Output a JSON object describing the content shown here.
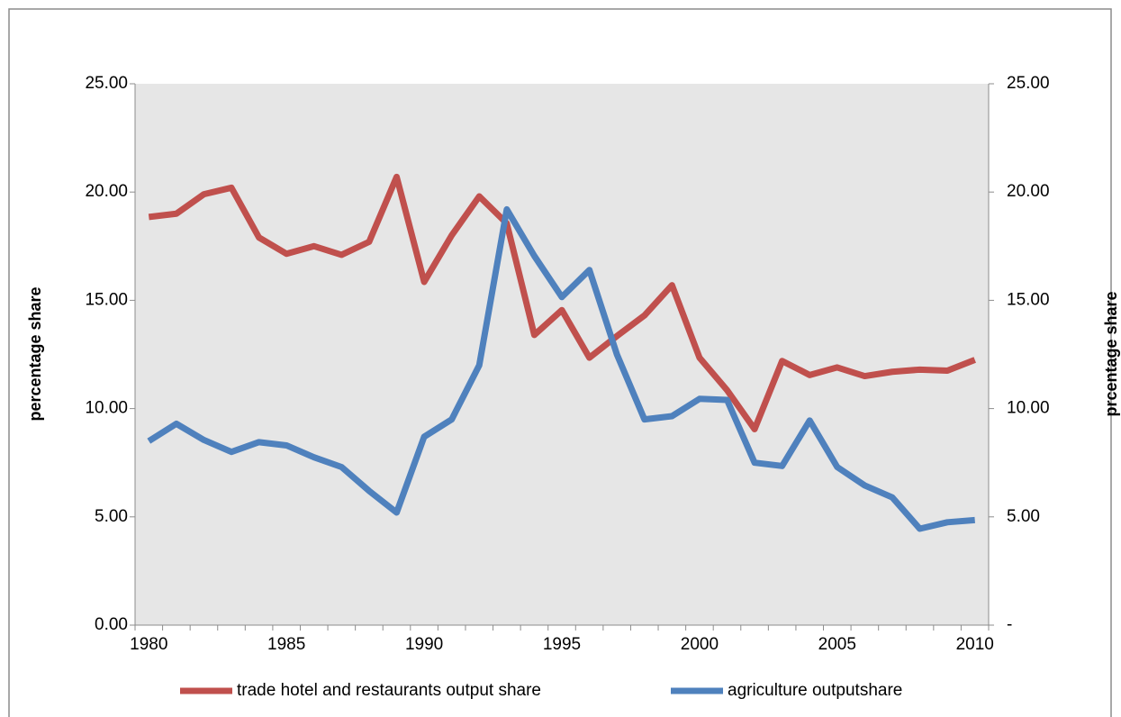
{
  "chart_data": {
    "type": "line",
    "y_label": "percentage share",
    "y2_label": "prcentage share",
    "categories": [
      "1980",
      null,
      null,
      null,
      null,
      "1985",
      null,
      null,
      null,
      null,
      "1990",
      null,
      null,
      null,
      null,
      "1995",
      null,
      null,
      null,
      null,
      "2000",
      null,
      null,
      null,
      null,
      "2005",
      null,
      null,
      null,
      null,
      "2010"
    ],
    "series": [
      {
        "name": "trade hotel and restaurants output share",
        "color": "#c0504d",
        "values": [
          18.85,
          19.0,
          19.9,
          20.2,
          17.9,
          17.15,
          17.5,
          17.1,
          17.7,
          20.7,
          15.85,
          18.0,
          19.8,
          18.55,
          13.4,
          14.55,
          12.35,
          13.35,
          14.3,
          15.7,
          12.35,
          10.85,
          9.05,
          12.2,
          11.55,
          11.9,
          11.5,
          11.7,
          11.8,
          11.75,
          12.25
        ]
      },
      {
        "name": "agriculture outputshare",
        "color": "#4f81bd",
        "axis": "y2",
        "values": [
          8.5,
          9.3,
          8.55,
          8.0,
          8.45,
          8.3,
          7.75,
          7.3,
          6.2,
          5.2,
          8.7,
          9.5,
          12.0,
          19.2,
          17.05,
          15.15,
          16.4,
          12.5,
          9.5,
          9.65,
          10.45,
          10.4,
          7.5,
          7.35,
          9.45,
          7.3,
          6.45,
          5.9,
          4.45,
          4.75,
          4.85
        ]
      }
    ],
    "ylim": [
      0,
      25
    ],
    "yticks": [
      {
        "value": 0,
        "label": "0.00"
      },
      {
        "value": 5,
        "label": "5.00"
      },
      {
        "value": 10,
        "label": "10.00"
      },
      {
        "value": 15,
        "label": "15.00"
      },
      {
        "value": 20,
        "label": "20.00"
      },
      {
        "value": 25,
        "label": "25.00"
      }
    ],
    "y2lim": [
      0,
      25
    ],
    "y2ticks": [
      {
        "value": 0,
        "label": "-"
      },
      {
        "value": 5,
        "label": "5.00"
      },
      {
        "value": 10,
        "label": "10.00"
      },
      {
        "value": 15,
        "label": "15.00"
      },
      {
        "value": 20,
        "label": "20.00"
      },
      {
        "value": 25,
        "label": "25.00"
      }
    ],
    "grid": false,
    "legend": "bottom",
    "plot_background": "#e6e6e6"
  }
}
